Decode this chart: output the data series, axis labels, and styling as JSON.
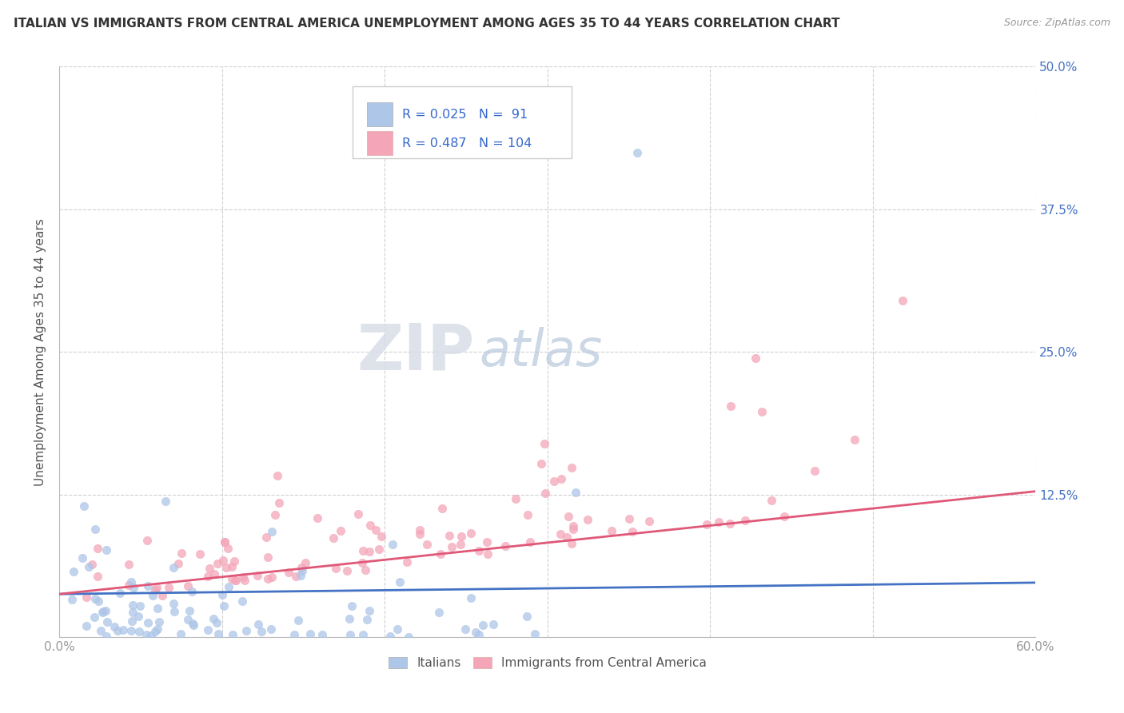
{
  "title": "ITALIAN VS IMMIGRANTS FROM CENTRAL AMERICA UNEMPLOYMENT AMONG AGES 35 TO 44 YEARS CORRELATION CHART",
  "source": "Source: ZipAtlas.com",
  "ylabel": "Unemployment Among Ages 35 to 44 years",
  "xlim": [
    0.0,
    0.6
  ],
  "ylim": [
    0.0,
    0.5
  ],
  "xticks": [
    0.0,
    0.1,
    0.2,
    0.3,
    0.4,
    0.5,
    0.6
  ],
  "xticklabels": [
    "0.0%",
    "",
    "",
    "",
    "",
    "",
    "60.0%"
  ],
  "yticks": [
    0.0,
    0.125,
    0.25,
    0.375,
    0.5
  ],
  "ytick_right_labels": [
    "",
    "12.5%",
    "25.0%",
    "37.5%",
    "50.0%"
  ],
  "italian_R": 0.025,
  "italian_N": 91,
  "central_america_R": 0.487,
  "central_america_N": 104,
  "italian_color": "#aec6e8",
  "central_america_color": "#f4a6b8",
  "italian_trend_color": "#4472c4",
  "central_america_trend_color": "#e05878",
  "legend_label_italian": "Italians",
  "legend_label_central_america": "Immigrants from Central America",
  "watermark_zip": "ZIP",
  "watermark_atlas": "atlas",
  "background_color": "#ffffff",
  "grid_color": "#d0d0d0",
  "title_color": "#333333",
  "axis_label_color": "#555555",
  "tick_label_color": "#999999",
  "right_tick_color": "#4472c4",
  "legend_text_color": "#3366cc",
  "seed": 99
}
